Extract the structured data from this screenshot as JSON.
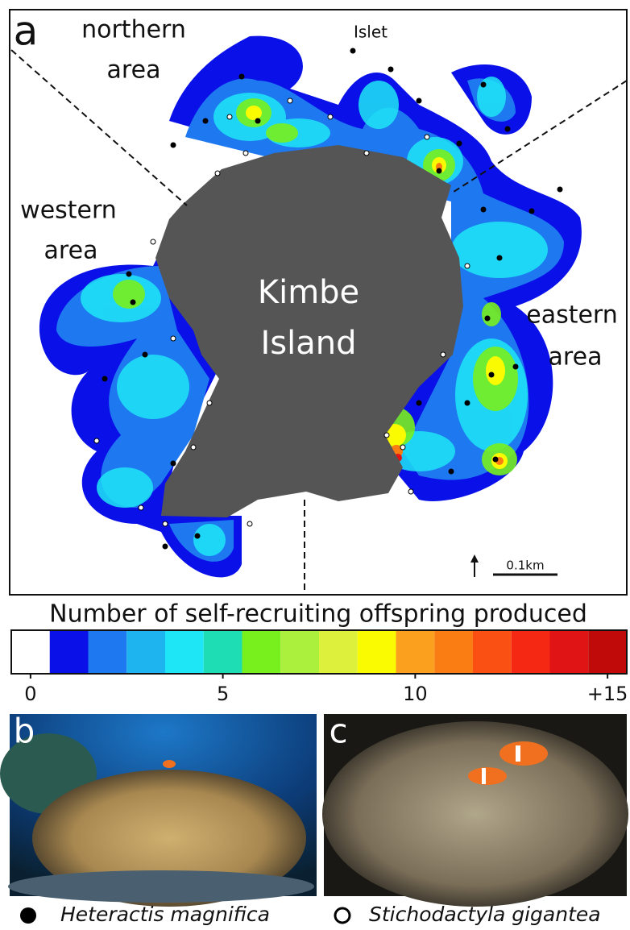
{
  "panel_a": {
    "label": "a",
    "regions": {
      "northern": [
        "northern",
        "area"
      ],
      "western": [
        "western",
        "area"
      ],
      "eastern": [
        "eastern",
        "area"
      ],
      "islet": "Islet"
    },
    "island": [
      "Kimbe",
      "Island"
    ],
    "scale_bar": "0.1km"
  },
  "colorbar": {
    "title": "Number of self-recruiting offspring produced",
    "colors": [
      "#ffffff",
      "#0a10e8",
      "#1e78f0",
      "#1eb4f0",
      "#1ee6f6",
      "#1edcb4",
      "#78f01e",
      "#aaf03c",
      "#dcf03c",
      "#fafa00",
      "#faa01e",
      "#fa7d14",
      "#fa5014",
      "#f52814",
      "#e01414",
      "#c00a0a"
    ],
    "ticks": [
      0,
      5,
      10,
      {
        "value": 15,
        "label": "+15"
      }
    ]
  },
  "panel_b": {
    "label": "b"
  },
  "panel_c": {
    "label": "c"
  },
  "legend": {
    "filled": "Heteractis magnifica",
    "open": "Stichodactyla gigantea"
  }
}
